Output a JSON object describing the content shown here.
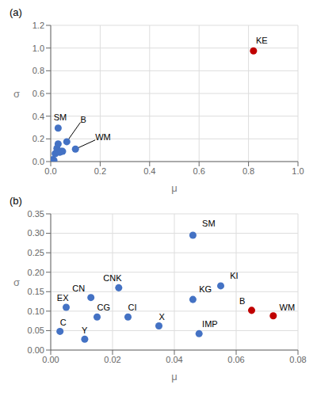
{
  "chart_data": [
    {
      "type": "scatter",
      "title": "(a)",
      "x_label": "μ",
      "y_label": "σ",
      "series": [
        {
          "color": "#4472C4",
          "x": [
            0.03,
            0.065,
            0.1,
            0.008,
            0.013,
            0.018,
            0.025,
            0.03,
            0.036,
            0.042,
            0.048,
            0.005,
            0.003
          ],
          "values": [
            0.295,
            0.175,
            0.11,
            0.018,
            0.01,
            0.07,
            0.115,
            0.155,
            0.082,
            0.09,
            0.09,
            0.008,
            0.003
          ]
        },
        {
          "color": "#C00000",
          "x": [
            0.82
          ],
          "values": [
            0.975
          ]
        }
      ],
      "xlim": [
        0,
        1
      ],
      "ylim": [
        0,
        1.2
      ],
      "xticks": [
        {
          "value": 0,
          "label": "0.0"
        },
        0.2,
        0.4,
        0.6,
        0.8,
        {
          "value": 1.0,
          "label": "1.0"
        }
      ],
      "yticks": [
        {
          "value": 0,
          "label": "0.0"
        },
        0.2,
        0.4,
        0.6,
        0.8,
        {
          "value": 1.0,
          "label": "1.0"
        },
        1.2
      ],
      "grid": true,
      "annotations": [
        {
          "text": "SM",
          "x": 0.03,
          "y": 0.295,
          "text_x": 0.012,
          "text_y": 0.36,
          "arrow": false
        },
        {
          "text": "B",
          "x": 0.065,
          "y": 0.175,
          "text_x": 0.12,
          "text_y": 0.345,
          "arrow": true
        },
        {
          "text": "WM",
          "x": 0.1,
          "y": 0.11,
          "text_x": 0.18,
          "text_y": 0.19,
          "arrow": true
        },
        {
          "text": "KE",
          "x": 0.82,
          "y": 0.975,
          "text_x": 0.83,
          "text_y": 1.04,
          "arrow": false
        }
      ]
    },
    {
      "type": "scatter",
      "title": "(b)",
      "x_label": "μ",
      "y_label": "σ",
      "series": [
        {
          "color": "#4472C4",
          "x": [
            0.046,
            0.055,
            0.046,
            0.022,
            0.013,
            0.015,
            0.025,
            0.035,
            0.048,
            0.005,
            0.003,
            0.011
          ],
          "values": [
            0.295,
            0.165,
            0.13,
            0.16,
            0.135,
            0.085,
            0.085,
            0.062,
            0.042,
            0.11,
            0.048,
            0.028
          ]
        },
        {
          "color": "#C00000",
          "x": [
            0.065,
            0.072
          ],
          "values": [
            0.102,
            0.088
          ]
        }
      ],
      "xlim": [
        0,
        0.08
      ],
      "ylim": [
        0,
        0.35
      ],
      "xticks": [
        {
          "value": 0,
          "label": "0.00"
        },
        0.02,
        0.04,
        0.06,
        0.08
      ],
      "yticks": [
        {
          "value": 0,
          "label": "0.00"
        },
        0.05,
        {
          "value": 0.1,
          "label": "0.10"
        },
        0.15,
        {
          "value": 0.2,
          "label": "0.20"
        },
        0.25,
        {
          "value": 0.3,
          "label": "0.30"
        },
        0.35
      ],
      "grid": true,
      "annotations": [
        {
          "text": "SM",
          "x": 0.046,
          "y": 0.295,
          "text_x": 0.049,
          "text_y": 0.317,
          "arrow": false
        },
        {
          "text": "KI",
          "x": 0.055,
          "y": 0.165,
          "text_x": 0.058,
          "text_y": 0.183,
          "arrow": false
        },
        {
          "text": "KG",
          "x": 0.046,
          "y": 0.13,
          "text_x": 0.048,
          "text_y": 0.148,
          "arrow": false
        },
        {
          "text": "CNK",
          "x": 0.022,
          "y": 0.16,
          "text_x": 0.017,
          "text_y": 0.178,
          "arrow": false
        },
        {
          "text": "CN",
          "x": 0.013,
          "y": 0.135,
          "text_x": 0.007,
          "text_y": 0.151,
          "arrow": false
        },
        {
          "text": "CG",
          "x": 0.015,
          "y": 0.085,
          "text_x": 0.015,
          "text_y": 0.101,
          "arrow": false
        },
        {
          "text": "CI",
          "x": 0.025,
          "y": 0.085,
          "text_x": 0.025,
          "text_y": 0.101,
          "arrow": false
        },
        {
          "text": "X",
          "x": 0.035,
          "y": 0.062,
          "text_x": 0.035,
          "text_y": 0.078,
          "arrow": false
        },
        {
          "text": "IMP",
          "x": 0.048,
          "y": 0.042,
          "text_x": 0.049,
          "text_y": 0.058,
          "arrow": false
        },
        {
          "text": "EX",
          "x": 0.005,
          "y": 0.11,
          "text_x": 0.002,
          "text_y": 0.126,
          "arrow": false
        },
        {
          "text": "C",
          "x": 0.003,
          "y": 0.048,
          "text_x": 0.003,
          "text_y": 0.063,
          "arrow": false
        },
        {
          "text": "Y",
          "x": 0.011,
          "y": 0.028,
          "text_x": 0.01,
          "text_y": 0.042,
          "arrow": false
        },
        {
          "text": "B",
          "x": 0.065,
          "y": 0.102,
          "text_x": 0.061,
          "text_y": 0.118,
          "arrow": false
        },
        {
          "text": "WM",
          "x": 0.072,
          "y": 0.088,
          "text_x": 0.074,
          "text_y": 0.102,
          "arrow": false
        }
      ]
    }
  ]
}
